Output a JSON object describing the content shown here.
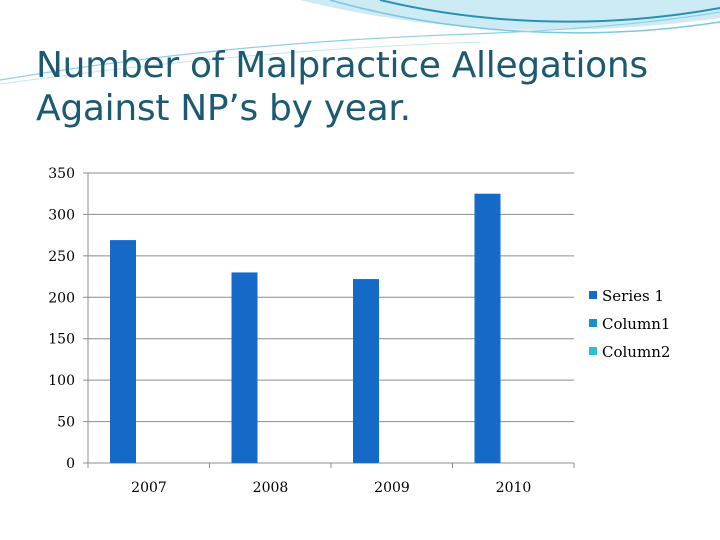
{
  "slide": {
    "title_line1": "Number of Malpractice Allegations",
    "title_line2": "Against NP’s by year."
  },
  "colors": {
    "title": "#1b5a72",
    "wave_dark": "#2a8fb5",
    "wave_light": "#bfe6f2",
    "series": [
      "#1569c7",
      "#1c8fc4",
      "#27c3d2"
    ]
  },
  "chart_data": {
    "type": "bar",
    "categories": [
      "2007",
      "2008",
      "2009",
      "2010"
    ],
    "series": [
      {
        "name": "Series 1",
        "values": [
          269,
          230,
          222,
          325
        ]
      },
      {
        "name": "Column1",
        "values": [
          null,
          null,
          null,
          null
        ]
      },
      {
        "name": "Column2",
        "values": [
          null,
          null,
          null,
          null
        ]
      }
    ],
    "ylim": [
      0,
      350
    ],
    "yticks": [
      0,
      50,
      100,
      150,
      200,
      250,
      300,
      350
    ],
    "grid": true,
    "legend": "right"
  }
}
